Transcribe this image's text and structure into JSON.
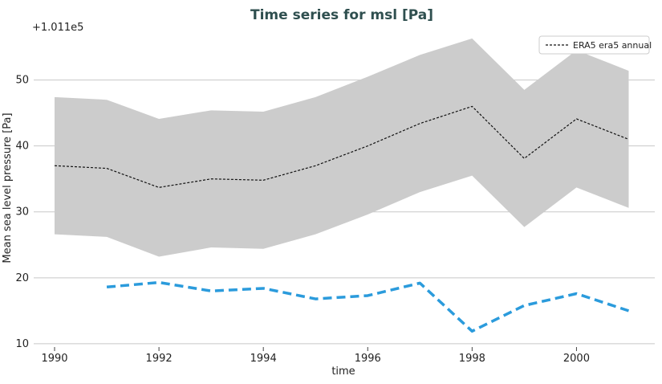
{
  "chart_data": {
    "type": "line",
    "title": "Time series for msl [Pa]",
    "xlabel": "time",
    "ylabel": "Mean sea level pressure [Pa]",
    "y_offset_label": "+1.011e5",
    "xlim": [
      1989.6,
      2001.5
    ],
    "ylim": [
      9.5,
      57.5
    ],
    "xticks": [
      1990,
      1992,
      1994,
      1996,
      1998,
      2000
    ],
    "yticks": [
      10,
      20,
      30,
      40,
      50
    ],
    "grid": "horizontal",
    "legend_position": "top-right",
    "colors": {
      "band": "#cccccc",
      "main": "#111111",
      "second": "#2b9bdc",
      "grid": "#c8c8c8",
      "title": "#2f4f4f"
    },
    "band": {
      "x": [
        1990,
        1991,
        1992,
        1993,
        1994,
        1995,
        1996,
        1997,
        1998,
        1999,
        2000,
        2001
      ],
      "upper": [
        47.4,
        47.0,
        44.1,
        45.4,
        45.2,
        47.4,
        50.5,
        53.8,
        56.3,
        48.5,
        54.5,
        51.4
      ],
      "lower": [
        26.6,
        26.2,
        23.2,
        24.6,
        24.4,
        26.6,
        29.6,
        33.0,
        35.5,
        27.7,
        33.7,
        30.6
      ]
    },
    "series": [
      {
        "name": "ERA5 era5 annual",
        "style": "dashed-thin",
        "x": [
          1990,
          1991,
          1992,
          1993,
          1994,
          1995,
          1996,
          1997,
          1998,
          1999,
          2000,
          2001
        ],
        "values": [
          37.0,
          36.6,
          33.7,
          35.0,
          34.8,
          37.0,
          40.0,
          43.4,
          46.0,
          38.1,
          44.1,
          41.0
        ]
      },
      {
        "style": "dashed-thick",
        "x": [
          1991,
          1992,
          1993,
          1994,
          1995,
          1996,
          1997,
          1998,
          1999,
          2000,
          2001
        ],
        "values": [
          18.6,
          19.3,
          18.0,
          18.4,
          16.8,
          17.3,
          19.2,
          11.9,
          15.8,
          17.6,
          15.0
        ]
      }
    ]
  }
}
